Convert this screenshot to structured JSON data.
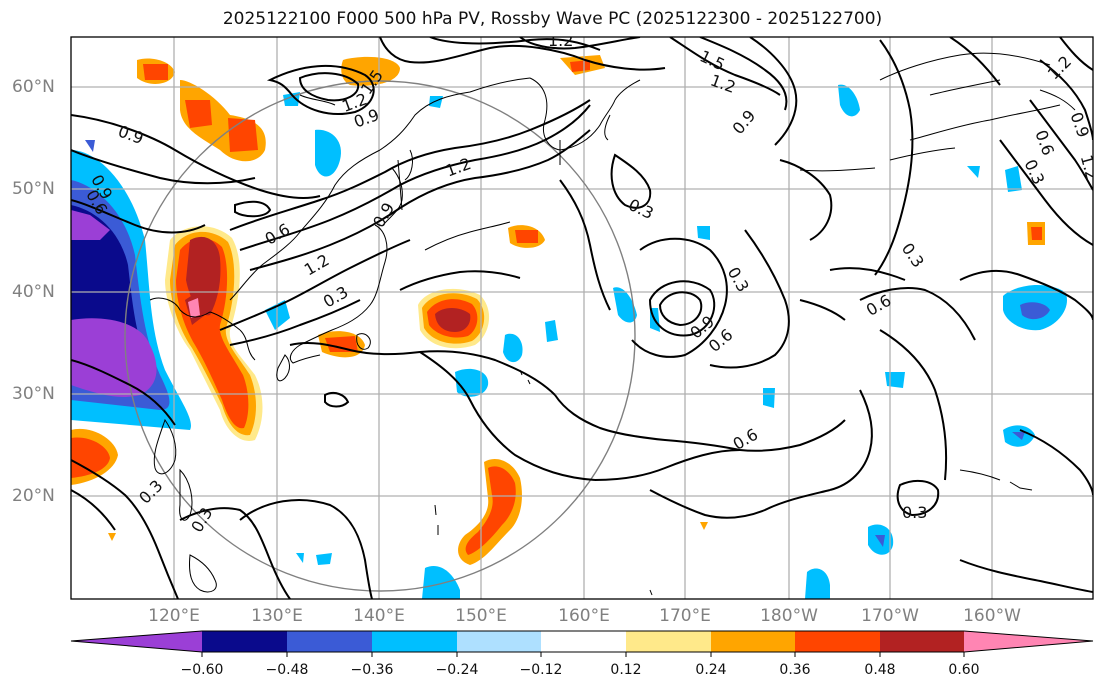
{
  "title": "2025122100 F000 500 hPa PV, Rossby Wave PC (2025122300 - 2025122700)",
  "lat_labels": [
    "60°N",
    "50°N",
    "40°N",
    "30°N",
    "20°N"
  ],
  "lon_labels": [
    "120°E",
    "130°E",
    "140°E",
    "150°E",
    "160°E",
    "170°E",
    "180°W",
    "170°W",
    "160°W"
  ],
  "colorbar": {
    "ticks": [
      "−0.60",
      "−0.48",
      "−0.36",
      "−0.24",
      "−0.12",
      "0.12",
      "0.24",
      "0.36",
      "0.48",
      "0.60"
    ],
    "colors": [
      "#9b3fd6",
      "#0a0a8c",
      "#3b5bd6",
      "#00bfff",
      "#aee0ff",
      "#ffffff",
      "#ffe98a",
      "#ffa500",
      "#ff4500",
      "#b22222",
      "#ff85b3"
    ]
  },
  "contour_labels": {
    "c1": "1.2",
    "c2": "1.5",
    "c3": "1.2",
    "c4": "0.9",
    "c5": "1.5",
    "c6": "1.2",
    "c7": "0.9",
    "c8": "1.2",
    "c9": "0.6",
    "c10": "0.3",
    "c11": "1.2",
    "c12": "0.9",
    "c13": "0.9",
    "c14": "1.2",
    "c15": "0.6",
    "c16": "0.3",
    "c17": "0.9",
    "c18": "0.6",
    "c19": "0.3",
    "c20": "0.3",
    "c21": "0.6",
    "c22": "0.9",
    "c23": "0.6",
    "c24": "0.6",
    "c25": "0.3",
    "c26": "0.3",
    "c27": "0.3",
    "c28": "0.3",
    "c29": "1.2",
    "c30": "0.9"
  }
}
